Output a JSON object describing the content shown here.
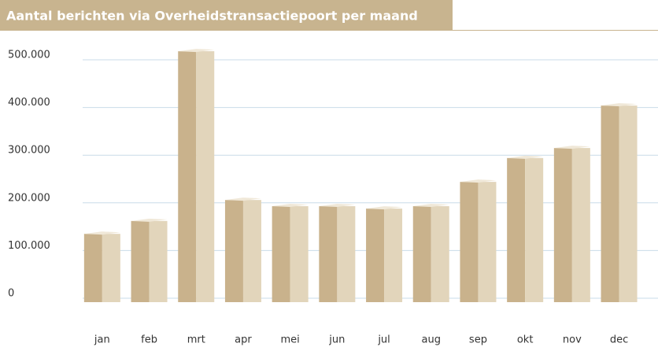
{
  "chart_data": {
    "type": "bar3d",
    "title": "Aantal berichten via Overheidstransactiepoort per maand",
    "categories": [
      "jan",
      "feb",
      "mrt",
      "apr",
      "mei",
      "jun",
      "jul",
      "aug",
      "sep",
      "okt",
      "nov",
      "dec"
    ],
    "values": [
      135000,
      162000,
      518000,
      206000,
      193000,
      193000,
      188000,
      193000,
      244000,
      294000,
      315000,
      404000
    ],
    "color": "#c9b28c",
    "ylim": [
      0,
      500000
    ],
    "yticks": [
      {
        "value": 0,
        "label": "0"
      },
      {
        "value": 100000,
        "label": "100.000"
      },
      {
        "value": 200000,
        "label": "200.000"
      },
      {
        "value": 300000,
        "label": "300.000"
      },
      {
        "value": 400000,
        "label": "400.000"
      },
      {
        "value": 500000,
        "label": "500.000"
      }
    ],
    "grid": true
  }
}
